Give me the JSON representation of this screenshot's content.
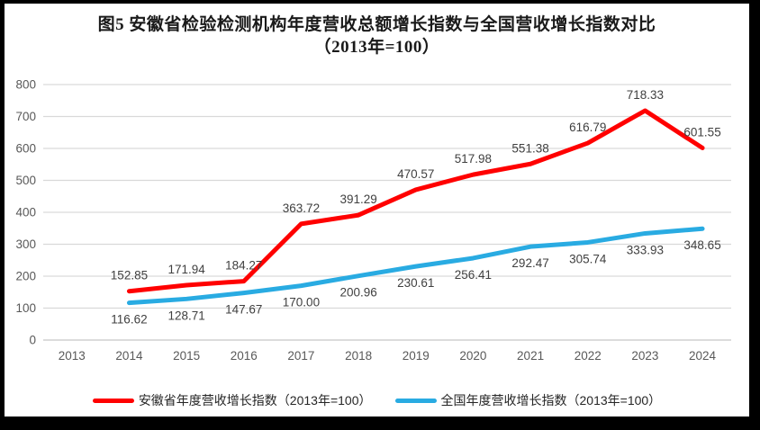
{
  "title": {
    "line1": "图5  安徽省检验检测机构年度营收总额增长指数与全国营收增长指数对比",
    "line2": "（2013年=100）"
  },
  "chart_data": {
    "type": "line",
    "title": "图5 安徽省检验检测机构年度营收总额增长指数与全国营收增长指数对比（2013年=100）",
    "categories": [
      "2013",
      "2014",
      "2015",
      "2016",
      "2017",
      "2018",
      "2019",
      "2020",
      "2021",
      "2022",
      "2023",
      "2024"
    ],
    "ylim": [
      0,
      800
    ],
    "y_ticks": [
      0,
      100,
      200,
      300,
      400,
      500,
      600,
      700,
      800
    ],
    "grid": true,
    "legend_position": "bottom",
    "value_label_decimals": 2,
    "series": [
      {
        "key": "anhui",
        "name": "安徽省年度营收增长指数（2013年=100）",
        "color": "#FF0000",
        "label_side": "above",
        "values": [
          null,
          152.85,
          171.94,
          184.27,
          363.72,
          391.29,
          470.57,
          517.98,
          551.38,
          616.79,
          718.33,
          601.55
        ]
      },
      {
        "key": "national",
        "name": "全国年度营收增长指数（2013年=100）",
        "color": "#29ABE2",
        "label_side": "below",
        "values": [
          null,
          116.62,
          128.71,
          147.67,
          170.0,
          200.96,
          230.61,
          256.41,
          292.47,
          305.74,
          333.93,
          348.65
        ]
      }
    ],
    "colors": {
      "gridline": "#D9D9D9",
      "baseline": "#C6C6C6",
      "axis_text": "#595959",
      "data_label_text": "#404040"
    }
  }
}
